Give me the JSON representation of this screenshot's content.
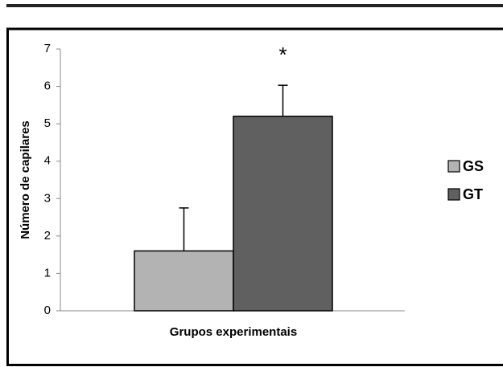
{
  "chart_data": {
    "type": "bar",
    "y_label": "Número de capilares",
    "x_label": "Grupos experimentais",
    "annotation": "*",
    "series": [
      {
        "name": "GS",
        "color": "#b3b3b3",
        "values": [
          1.6
        ],
        "errors": [
          1.15
        ]
      },
      {
        "name": "GT",
        "color": "#606060",
        "values": [
          5.2
        ],
        "errors": [
          0.83
        ]
      }
    ],
    "ylim": [
      0,
      7
    ],
    "yticks": [
      0,
      1,
      2,
      3,
      4,
      5,
      6,
      7
    ],
    "grid": false,
    "legend": "right"
  }
}
